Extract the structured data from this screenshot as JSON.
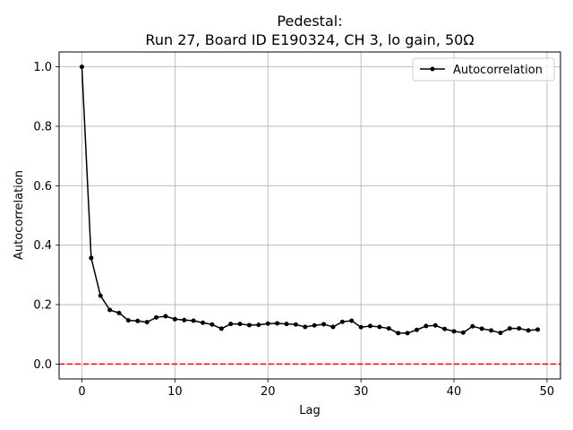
{
  "chart_data": {
    "type": "line",
    "title_line1": "Pedestal:",
    "title_line2": "Run 27, Board ID E190324, CH 3, lo gain, 50Ω",
    "xlabel": "Lag",
    "ylabel": "Autocorrelation",
    "xlim": [
      -2.45,
      51.45
    ],
    "ylim": [
      -0.05,
      1.05
    ],
    "xticks": [
      0,
      10,
      20,
      30,
      40,
      50
    ],
    "xtick_labels": [
      "0",
      "10",
      "20",
      "30",
      "40",
      "50"
    ],
    "yticks": [
      0.0,
      0.2,
      0.4,
      0.6,
      0.8,
      1.0
    ],
    "ytick_labels": [
      "0.0",
      "0.2",
      "0.4",
      "0.6",
      "0.8",
      "1.0"
    ],
    "grid": true,
    "legend_position": "top-right",
    "reference_line": {
      "y": 0.0,
      "color": "#ff0000",
      "style": "dashed"
    },
    "series": [
      {
        "name": "Autocorrelation",
        "color": "#000000",
        "marker": "circle",
        "x": [
          0,
          1,
          2,
          3,
          4,
          5,
          6,
          7,
          8,
          9,
          10,
          11,
          12,
          13,
          14,
          15,
          16,
          17,
          18,
          19,
          20,
          21,
          22,
          23,
          24,
          25,
          26,
          27,
          28,
          29,
          30,
          31,
          32,
          33,
          34,
          35,
          36,
          37,
          38,
          39,
          40,
          41,
          42,
          43,
          44,
          45,
          46,
          47,
          48,
          49
        ],
        "y": [
          1.0,
          0.357,
          0.23,
          0.182,
          0.172,
          0.147,
          0.145,
          0.141,
          0.157,
          0.161,
          0.151,
          0.148,
          0.146,
          0.139,
          0.133,
          0.119,
          0.135,
          0.135,
          0.131,
          0.132,
          0.136,
          0.137,
          0.135,
          0.133,
          0.125,
          0.13,
          0.134,
          0.125,
          0.142,
          0.146,
          0.124,
          0.128,
          0.125,
          0.12,
          0.104,
          0.104,
          0.115,
          0.128,
          0.13,
          0.118,
          0.11,
          0.106,
          0.127,
          0.119,
          0.113,
          0.105,
          0.12,
          0.12,
          0.113,
          0.116
        ]
      }
    ]
  }
}
